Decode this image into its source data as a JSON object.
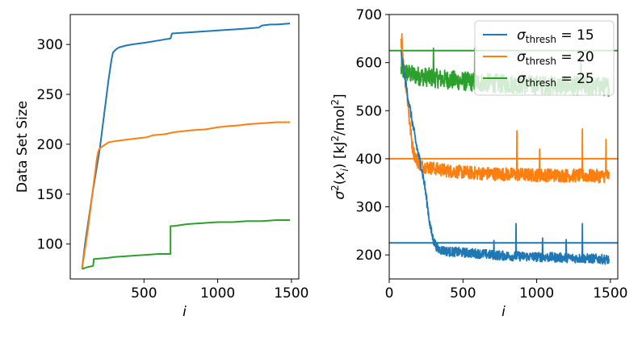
{
  "chart_data": [
    {
      "type": "line",
      "title": "",
      "xlabel": "i",
      "ylabel": "Data Set Size",
      "xlim": [
        0,
        1550
      ],
      "ylim": [
        65,
        330
      ],
      "xticks": [
        "500",
        "1000",
        "1500"
      ],
      "xtick_values": [
        500,
        1000,
        1500
      ],
      "yticks": [
        "100",
        "150",
        "200",
        "250",
        "300"
      ],
      "ytick_values": [
        100,
        150,
        200,
        250,
        300
      ],
      "grid": false,
      "legend": "none",
      "series": [
        {
          "color": "#1f77b4",
          "points": [
            [
              80,
              75
            ],
            [
              100,
              100
            ],
            [
              150,
              150
            ],
            [
              200,
              195
            ],
            [
              230,
              230
            ],
            [
              260,
              265
            ],
            [
              280,
              285
            ],
            [
              290,
              292
            ],
            [
              310,
              295
            ],
            [
              330,
              297
            ],
            [
              380,
              299
            ],
            [
              420,
              300
            ],
            [
              520,
              302
            ],
            [
              600,
              304
            ],
            [
              640,
              305
            ],
            [
              680,
              306
            ],
            [
              690,
              311
            ],
            [
              800,
              312
            ],
            [
              900,
              313
            ],
            [
              1000,
              314
            ],
            [
              1100,
              315
            ],
            [
              1200,
              316
            ],
            [
              1280,
              317
            ],
            [
              1300,
              319
            ],
            [
              1360,
              320
            ],
            [
              1400,
              320
            ],
            [
              1490,
              321
            ]
          ]
        },
        {
          "color": "#ff7f0e",
          "points": [
            [
              80,
              75
            ],
            [
              120,
              115
            ],
            [
              150,
              150
            ],
            [
              180,
              185
            ],
            [
              190,
              193
            ],
            [
              200,
              196
            ],
            [
              220,
              198
            ],
            [
              240,
              200
            ],
            [
              260,
              202
            ],
            [
              300,
              203
            ],
            [
              400,
              205
            ],
            [
              520,
              207
            ],
            [
              560,
              209
            ],
            [
              640,
              210
            ],
            [
              700,
              212
            ],
            [
              760,
              213
            ],
            [
              820,
              214
            ],
            [
              920,
              215
            ],
            [
              1000,
              217
            ],
            [
              1060,
              218
            ],
            [
              1150,
              219
            ],
            [
              1200,
              220
            ],
            [
              1300,
              221
            ],
            [
              1400,
              222
            ],
            [
              1490,
              222
            ]
          ]
        },
        {
          "color": "#2ca02c",
          "points": [
            [
              80,
              75
            ],
            [
              120,
              77
            ],
            [
              155,
              78
            ],
            [
              160,
              85
            ],
            [
              250,
              86
            ],
            [
              300,
              87
            ],
            [
              400,
              88
            ],
            [
              500,
              89
            ],
            [
              600,
              90
            ],
            [
              680,
              90
            ],
            [
              680,
              118
            ],
            [
              700,
              118
            ],
            [
              800,
              120
            ],
            [
              900,
              121
            ],
            [
              1000,
              122
            ],
            [
              1100,
              122
            ],
            [
              1200,
              123
            ],
            [
              1300,
              123
            ],
            [
              1400,
              124
            ],
            [
              1490,
              124
            ]
          ]
        }
      ]
    },
    {
      "type": "line",
      "title": "",
      "xlabel": "i",
      "ylabel": "σ²(x_i) [kJ²/mol²]",
      "xlim": [
        0,
        1550
      ],
      "ylim": [
        150,
        700
      ],
      "xticks": [
        "0",
        "500",
        "1000",
        "1500"
      ],
      "xtick_values": [
        0,
        500,
        1000,
        1500
      ],
      "yticks": [
        "200",
        "300",
        "400",
        "500",
        "600",
        "700"
      ],
      "ytick_values": [
        200,
        300,
        400,
        500,
        600,
        700
      ],
      "grid": false,
      "legend": "top-right",
      "thresholds": [
        {
          "value": 225,
          "color": "#1f77b4"
        },
        {
          "value": 400,
          "color": "#ff7f0e"
        },
        {
          "value": 625,
          "color": "#2ca02c"
        }
      ],
      "series": [
        {
          "label": "σthresh = 15",
          "color": "#1f77b4",
          "noise": 10,
          "points": [
            [
              80,
              620
            ],
            [
              110,
              560
            ],
            [
              140,
              505
            ],
            [
              160,
              470
            ],
            [
              180,
              435
            ],
            [
              200,
              405
            ],
            [
              220,
              380
            ],
            [
              240,
              345
            ],
            [
              260,
              300
            ],
            [
              280,
              255
            ],
            [
              300,
              230
            ],
            [
              330,
              212
            ],
            [
              400,
              207
            ],
            [
              500,
              205
            ],
            [
              600,
              203
            ],
            [
              700,
              200
            ],
            [
              800,
              198
            ],
            [
              900,
              197
            ],
            [
              1000,
              196
            ],
            [
              1100,
              195
            ],
            [
              1200,
              194
            ],
            [
              1300,
              193
            ],
            [
              1400,
              192
            ],
            [
              1490,
              190
            ]
          ],
          "spikes": [
            [
              860,
              265
            ],
            [
              1310,
              265
            ],
            [
              1040,
              235
            ],
            [
              1200,
              232
            ],
            [
              710,
              230
            ]
          ]
        },
        {
          "label": "σthresh = 20",
          "color": "#ff7f0e",
          "noise": 14,
          "points": [
            [
              80,
              650
            ],
            [
              95,
              600
            ],
            [
              110,
              560
            ],
            [
              125,
              520
            ],
            [
              140,
              470
            ],
            [
              155,
              430
            ],
            [
              170,
              410
            ],
            [
              190,
              395
            ],
            [
              220,
              385
            ],
            [
              300,
              380
            ],
            [
              400,
              375
            ],
            [
              500,
              372
            ],
            [
              600,
              370
            ],
            [
              700,
              369
            ],
            [
              800,
              368
            ],
            [
              900,
              367
            ],
            [
              1000,
              366
            ],
            [
              1100,
              366
            ],
            [
              1200,
              365
            ],
            [
              1300,
              365
            ],
            [
              1400,
              364
            ],
            [
              1490,
              364
            ]
          ],
          "spikes": [
            [
              85,
              660
            ],
            [
              865,
              458
            ],
            [
              1310,
              462
            ],
            [
              1470,
              440
            ],
            [
              1020,
              420
            ]
          ]
        },
        {
          "label": "σthresh = 25",
          "color": "#2ca02c",
          "noise": 20,
          "points": [
            [
              80,
              585
            ],
            [
              150,
              575
            ],
            [
              250,
              570
            ],
            [
              350,
              566
            ],
            [
              450,
              563
            ],
            [
              550,
              560
            ],
            [
              650,
              558
            ],
            [
              750,
              556
            ],
            [
              850,
              555
            ],
            [
              950,
              554
            ],
            [
              1050,
              553
            ],
            [
              1150,
              552
            ],
            [
              1250,
              552
            ],
            [
              1350,
              551
            ],
            [
              1490,
              550
            ]
          ],
          "spikes": [
            [
              85,
              650
            ],
            [
              300,
              630
            ],
            [
              580,
              630
            ],
            [
              1300,
              620
            ]
          ]
        }
      ]
    }
  ]
}
